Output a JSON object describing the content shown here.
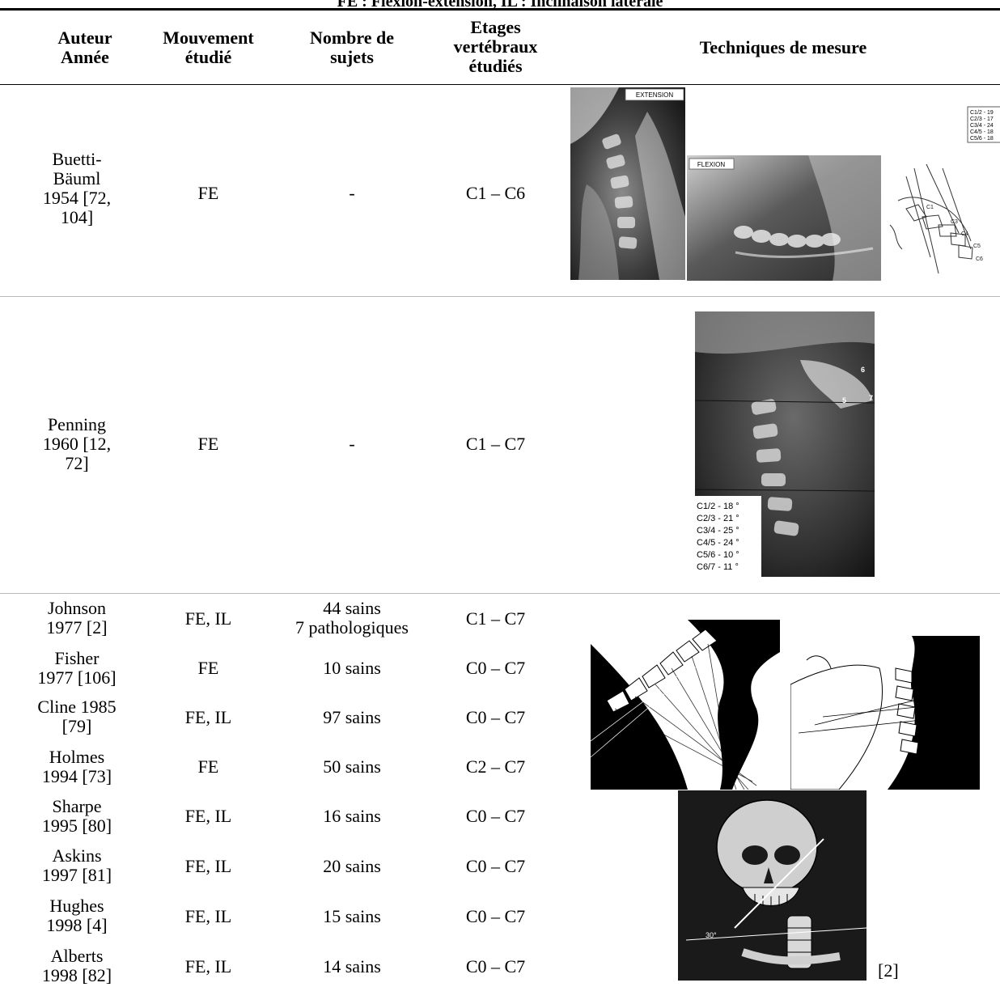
{
  "caption": "FE : Flexion-extension, IL : Inclinaison latérale",
  "headers": {
    "author": "Auteur\nAnnée",
    "movement": "Mouvement\nétudié",
    "subjects": "Nombre de\nsujets",
    "levels": "Etages\nvertébraux\nétudiés",
    "techniques": "Techniques de mesure"
  },
  "rows": [
    {
      "author": "Buetti-\nBäuml\n1954 [72,\n104]",
      "movement": "FE",
      "subjects": "-",
      "levels": "C1 – C6"
    },
    {
      "author": "Penning\n1960 [12,\n72]",
      "movement": "FE",
      "subjects": "-",
      "levels": "C1 – C7"
    }
  ],
  "group_rows": [
    {
      "author": "Johnson\n1977 [2]",
      "movement": "FE, IL",
      "subjects": "44 sains\n7 pathologiques",
      "levels": "C1 – C7"
    },
    {
      "author": "Fisher\n1977 [106]",
      "movement": "FE",
      "subjects": "10 sains",
      "levels": "C0 – C7"
    },
    {
      "author": "Cline 1985\n[79]",
      "movement": "FE, IL",
      "subjects": "97 sains",
      "levels": "C0 – C7"
    },
    {
      "author": "Holmes\n1994 [73]",
      "movement": "FE",
      "subjects": "50 sains",
      "levels": "C2 – C7"
    },
    {
      "author": "Sharpe\n1995 [80]",
      "movement": "FE, IL",
      "subjects": "16 sains",
      "levels": "C0 – C7"
    },
    {
      "author": "Askins\n1997 [81]",
      "movement": "FE, IL",
      "subjects": "20 sains",
      "levels": "C0 – C7"
    },
    {
      "author": "Hughes\n1998 [4]",
      "movement": "FE, IL",
      "subjects": "15 sains",
      "levels": "C0 – C7"
    },
    {
      "author": "Alberts\n1998 [82]",
      "movement": "FE, IL",
      "subjects": "14 sains",
      "levels": "C0 – C7"
    }
  ],
  "images": {
    "buetti_extension_label": "EXTENSION",
    "buetti_flexion_label": "FLEXION",
    "buetti_diagram_table": [
      "C1/2 - 19",
      "C2/3 - 17",
      "C3/4 - 24",
      "C4/5 - 18",
      "C5/6 - 18"
    ],
    "buetti_diagram_marks": [
      "C1",
      "C3",
      "C4",
      "C5",
      "C6"
    ],
    "penning_marks": [
      "6",
      "5",
      "7"
    ],
    "penning_table": [
      "C1/2 - 18 °",
      "C2/3 - 21 °",
      "C3/4 - 25 °",
      "C4/5 - 24 °",
      "C5/6 - 10 °",
      "C6/7 - 11 °"
    ],
    "skull_angle": "30°",
    "johnson_ref": "[2]"
  }
}
